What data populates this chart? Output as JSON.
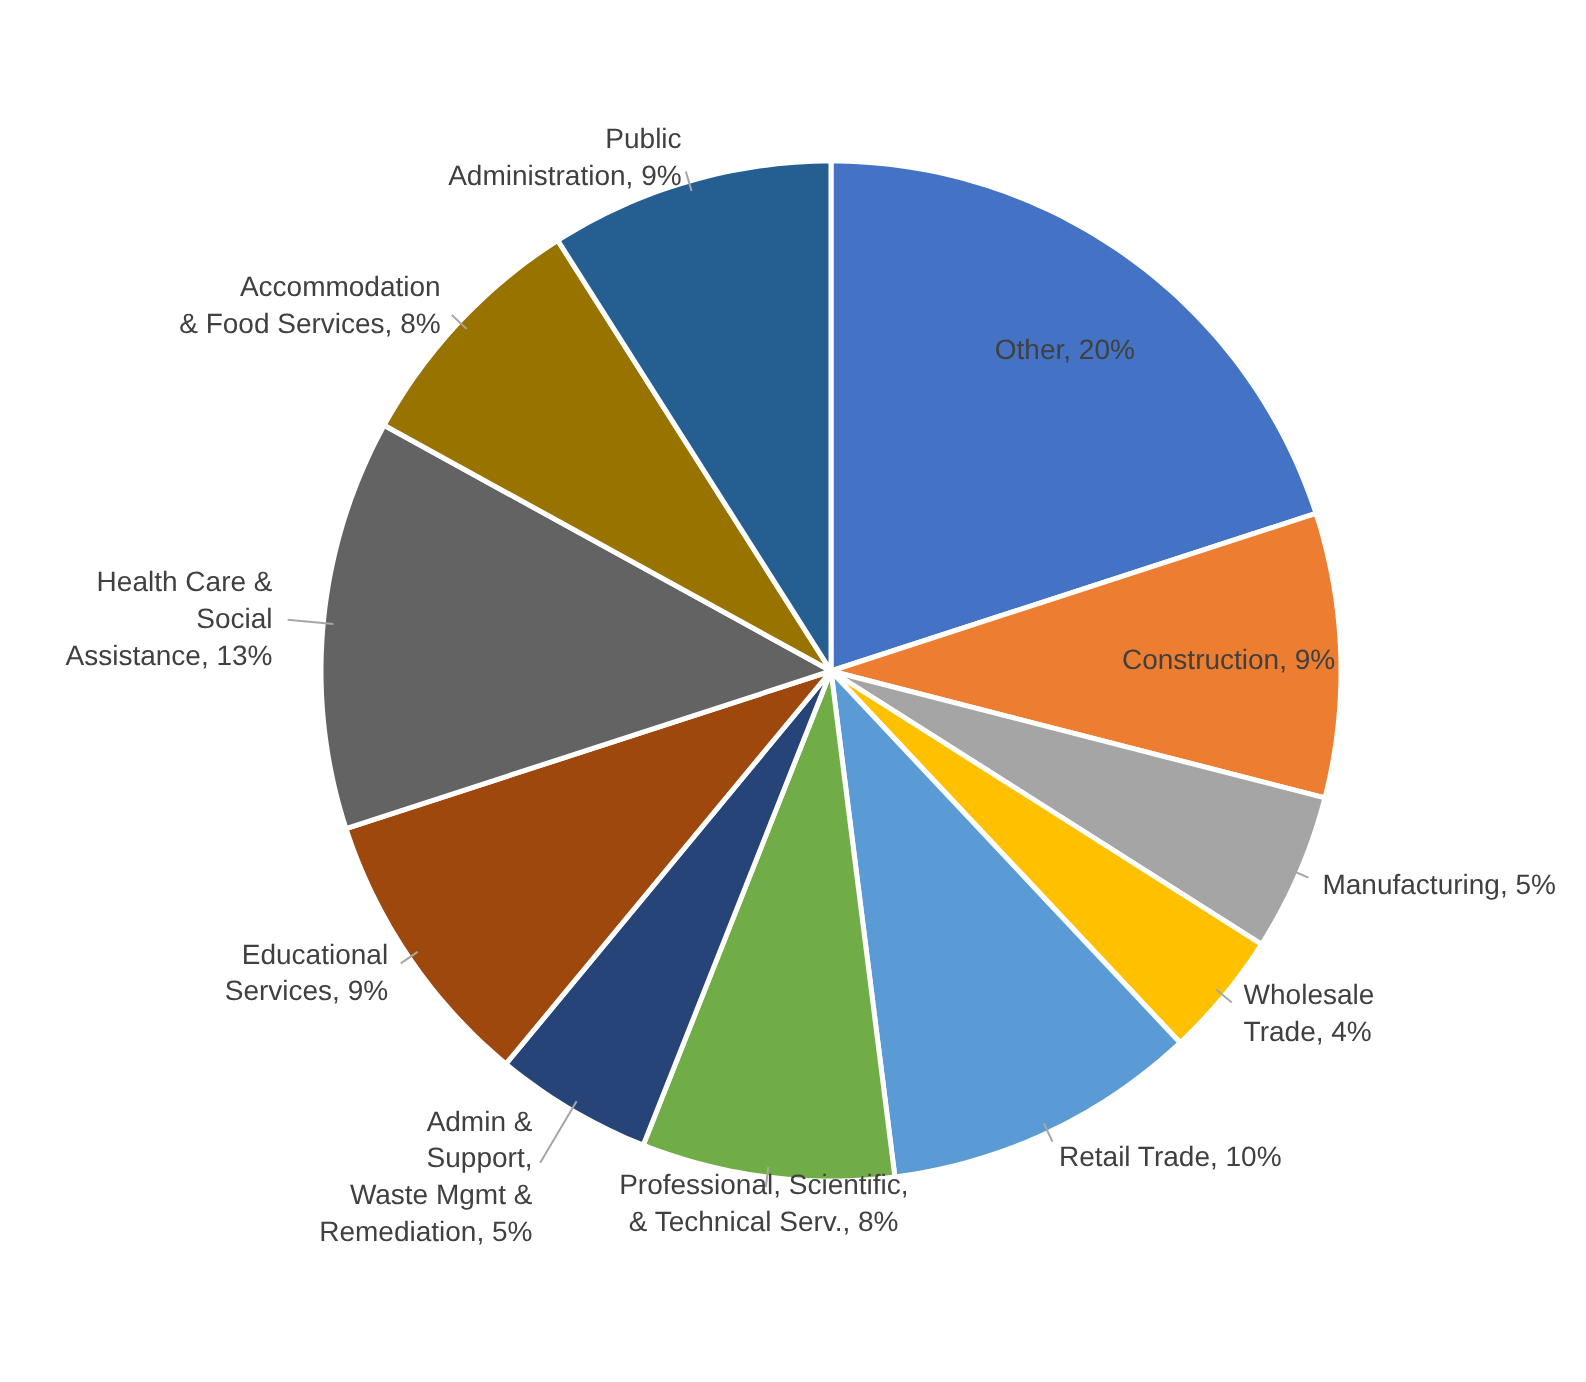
{
  "chart_data": {
    "type": "pie",
    "categories": [
      "Other",
      "Construction",
      "Manufacturing",
      "Wholesale\nTrade",
      "Retail Trade",
      "Professional, Scientific,\n& Technical Serv.",
      "Admin &\nSupport,\nWaste Mgmt &\nRemediation",
      "Educational\nServices",
      "Health Care &\nSocial\nAssistance",
      "Accommodation\n& Food Services",
      "Public\nAdministration"
    ],
    "values": [
      20,
      9,
      5,
      4,
      10,
      8,
      5,
      9,
      13,
      8,
      9
    ],
    "value_labels": [
      "20%",
      "9%",
      "5%",
      "4%",
      "10%",
      "8%",
      "5%",
      "9%",
      "13%",
      "8%",
      "9%"
    ],
    "colors": [
      "#4472c4",
      "#ed7d31",
      "#a5a5a5",
      "#ffc000",
      "#5b9bd5",
      "#70ad47",
      "#264478",
      "#9e480e",
      "#636363",
      "#997300",
      "#255e91"
    ]
  }
}
